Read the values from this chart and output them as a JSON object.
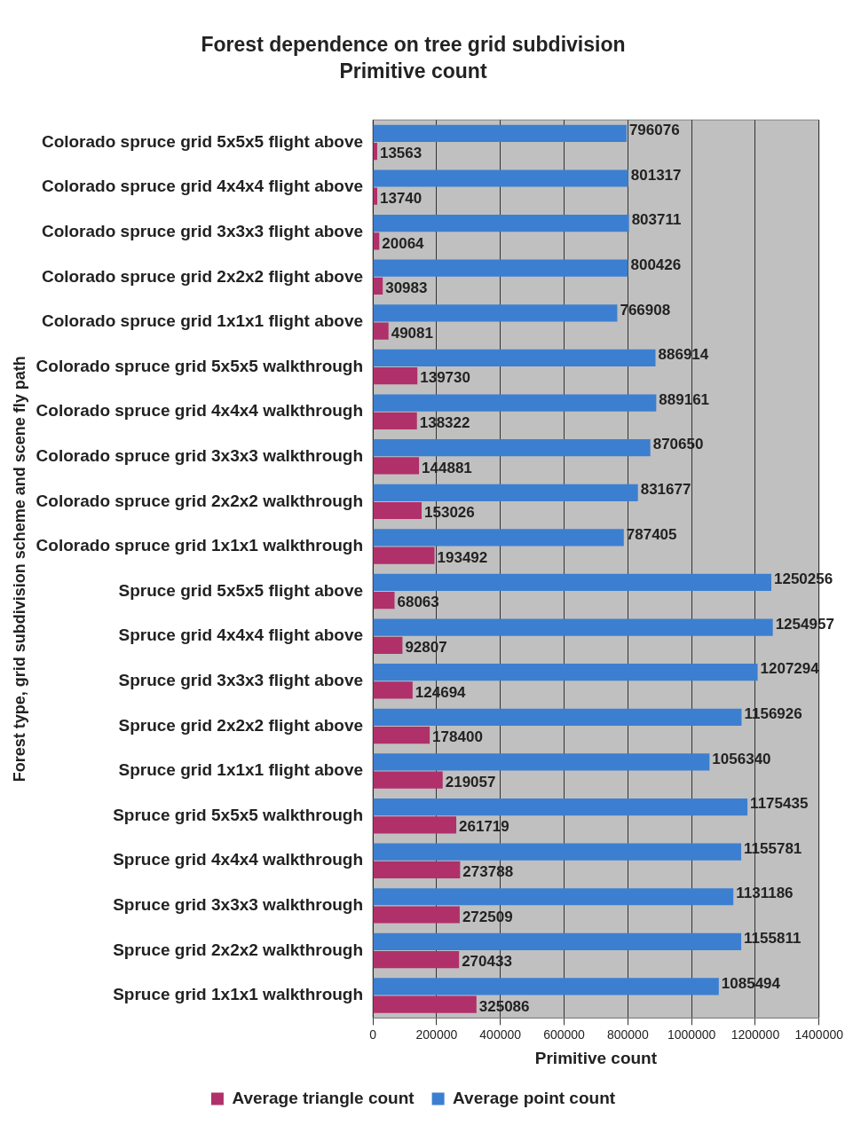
{
  "chart_data": {
    "type": "bar",
    "orientation": "horizontal",
    "title": "Forest dependence on tree grid subdivision",
    "subtitle": "Primitive count",
    "xlabel": "Primitive count",
    "ylabel": "Forest type, grid subdivision scheme and scene fly path",
    "categories": [
      "Colorado spruce grid 5x5x5 flight above",
      "Colorado spruce grid 4x4x4 flight above",
      "Colorado spruce grid 3x3x3 flight above",
      "Colorado spruce grid 2x2x2 flight above",
      "Colorado spruce grid 1x1x1 flight above",
      "Colorado spruce grid 5x5x5 walkthrough",
      "Colorado spruce grid 4x4x4 walkthrough",
      "Colorado spruce grid 3x3x3 walkthrough",
      "Colorado spruce grid 2x2x2 walkthrough",
      "Colorado spruce grid 1x1x1 walkthrough",
      "Spruce grid 5x5x5 flight above",
      "Spruce grid 4x4x4 flight above",
      "Spruce grid 3x3x3 flight above",
      "Spruce grid 2x2x2 flight above",
      "Spruce grid 1x1x1 flight above",
      "Spruce grid 5x5x5 walkthrough",
      "Spruce grid 4x4x4 walkthrough",
      "Spruce grid 3x3x3 walkthrough",
      "Spruce grid 2x2x2 walkthrough",
      "Spruce grid 1x1x1 walkthrough"
    ],
    "series": [
      {
        "name": "Average point count",
        "color": "#3c7fd0",
        "values": [
          796076,
          801317,
          803711,
          800426,
          766908,
          886914,
          889161,
          870650,
          831677,
          787405,
          1250256,
          1254957,
          1207294,
          1156926,
          1056340,
          1175435,
          1155781,
          1131186,
          1155811,
          1085494
        ]
      },
      {
        "name": "Average triangle count",
        "color": "#b0306a",
        "values": [
          13563,
          13740,
          20064,
          30983,
          49081,
          139730,
          138322,
          144881,
          153026,
          193492,
          68063,
          92807,
          124694,
          178400,
          219057,
          261719,
          273788,
          272509,
          270433,
          325086
        ]
      }
    ],
    "xlim": [
      0,
      1400000
    ],
    "xticks": [
      0,
      200000,
      400000,
      600000,
      800000,
      1000000,
      1200000,
      1400000
    ],
    "grid": "x",
    "legend": "bottom",
    "data_labels": true
  }
}
